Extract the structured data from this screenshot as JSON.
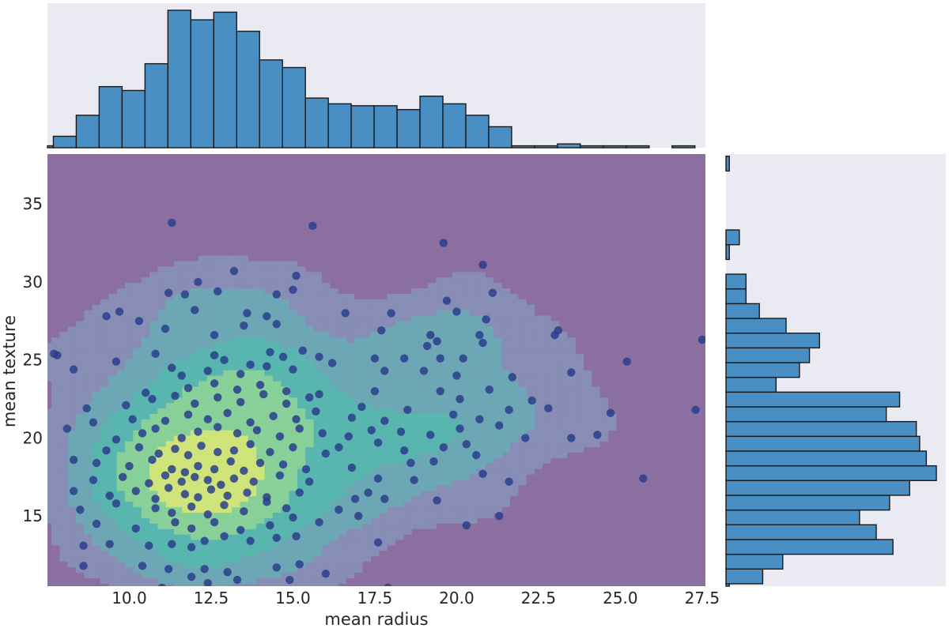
{
  "chart_data": {
    "type": "scatter",
    "title": "",
    "xlabel": "mean radius",
    "ylabel": "mean texture",
    "xlim": [
      7.5,
      27.6
    ],
    "ylim": [
      10.5,
      38.2
    ],
    "x_ticks": [
      "10.0",
      "12.5",
      "15.0",
      "17.5",
      "20.0",
      "22.5",
      "25.0",
      "27.5"
    ],
    "x_tick_values": [
      10.0,
      12.5,
      15.0,
      17.5,
      20.0,
      22.5,
      25.0,
      27.5
    ],
    "y_ticks": [
      "15",
      "20",
      "25",
      "30",
      "35"
    ],
    "y_tick_values": [
      15,
      20,
      25,
      30,
      35
    ],
    "grid": false,
    "background_color": "#8a6fa0",
    "marginal_background": "#eaeaf2",
    "bar_color": "#4a8fc3",
    "point_color": "#2a3e8c",
    "kde_colors": [
      "#8a6fa0",
      "#8790b8",
      "#6aa9b4",
      "#56b7ae",
      "#8dd397",
      "#d6e678"
    ],
    "x_hist": {
      "bin_start": 6.98,
      "bin_width": 0.7,
      "counts": [
        1,
        6,
        17,
        32,
        30,
        44,
        72,
        67,
        71,
        61,
        46,
        42,
        26,
        23,
        22,
        22,
        20,
        27,
        23,
        17,
        11,
        1,
        1,
        2,
        1,
        1,
        1,
        0,
        1,
        0,
        0
      ]
    },
    "y_hist": {
      "bin_start": 9.71,
      "bin_width": 0.945,
      "counts": [
        1,
        11,
        17,
        50,
        45,
        40,
        49,
        55,
        63,
        60,
        58,
        57,
        48,
        52,
        15,
        22,
        25,
        28,
        18,
        10,
        6,
        6,
        0,
        1,
        4,
        0,
        0,
        0,
        0,
        1
      ]
    },
    "points": [
      [
        11.0,
        10.4
      ],
      [
        11.9,
        11.1
      ],
      [
        12.4,
        10.7
      ],
      [
        13.3,
        10.9
      ],
      [
        14.9,
        10.9
      ],
      [
        16.0,
        11.3
      ],
      [
        17.9,
        10.4
      ],
      [
        8.6,
        11.8
      ],
      [
        10.4,
        11.8
      ],
      [
        11.2,
        11.6
      ],
      [
        12.3,
        11.6
      ],
      [
        13.0,
        11.4
      ],
      [
        14.5,
        11.7
      ],
      [
        15.2,
        11.9
      ],
      [
        17.6,
        13.3
      ],
      [
        8.6,
        13.1
      ],
      [
        9.4,
        13.2
      ],
      [
        10.6,
        13.1
      ],
      [
        11.3,
        13.2
      ],
      [
        11.9,
        13.0
      ],
      [
        12.3,
        13.4
      ],
      [
        12.9,
        13.7
      ],
      [
        13.7,
        13.4
      ],
      [
        14.5,
        13.6
      ],
      [
        15.1,
        13.7
      ],
      [
        9.0,
        14.5
      ],
      [
        10.2,
        14.2
      ],
      [
        11.4,
        14.6
      ],
      [
        11.9,
        14.2
      ],
      [
        12.6,
        14.6
      ],
      [
        13.4,
        14.1
      ],
      [
        14.3,
        14.4
      ],
      [
        15.0,
        14.9
      ],
      [
        15.8,
        14.6
      ],
      [
        20.3,
        14.4
      ],
      [
        8.5,
        15.4
      ],
      [
        9.6,
        15.8
      ],
      [
        10.8,
        15.5
      ],
      [
        11.3,
        15.2
      ],
      [
        11.9,
        15.6
      ],
      [
        12.4,
        15.1
      ],
      [
        12.9,
        15.7
      ],
      [
        13.5,
        15.3
      ],
      [
        14.2,
        15.9
      ],
      [
        14.8,
        15.5
      ],
      [
        16.4,
        15.4
      ],
      [
        17.0,
        15.0
      ],
      [
        21.3,
        15.0
      ],
      [
        8.3,
        16.6
      ],
      [
        9.4,
        16.3
      ],
      [
        10.2,
        16.6
      ],
      [
        10.8,
        16.1
      ],
      [
        11.2,
        16.8
      ],
      [
        11.7,
        16.4
      ],
      [
        12.1,
        16.2
      ],
      [
        12.5,
        16.7
      ],
      [
        13.0,
        16.3
      ],
      [
        13.6,
        16.5
      ],
      [
        14.2,
        16.2
      ],
      [
        15.2,
        16.5
      ],
      [
        16.9,
        16.1
      ],
      [
        17.3,
        16.5
      ],
      [
        17.8,
        16.1
      ],
      [
        19.4,
        16.0
      ],
      [
        8.9,
        17.3
      ],
      [
        9.8,
        17.5
      ],
      [
        10.6,
        17.1
      ],
      [
        11.1,
        17.6
      ],
      [
        11.6,
        17.2
      ],
      [
        12.0,
        17.5
      ],
      [
        12.4,
        17.3
      ],
      [
        12.8,
        17.0
      ],
      [
        13.2,
        17.4
      ],
      [
        13.8,
        17.2
      ],
      [
        14.6,
        17.6
      ],
      [
        15.5,
        17.2
      ],
      [
        17.6,
        17.4
      ],
      [
        18.7,
        17.3
      ],
      [
        20.8,
        17.7
      ],
      [
        21.6,
        17.2
      ],
      [
        25.7,
        17.4
      ],
      [
        9.0,
        18.4
      ],
      [
        10.0,
        18.2
      ],
      [
        10.7,
        18.6
      ],
      [
        11.3,
        18.0
      ],
      [
        11.7,
        17.8
      ],
      [
        12.1,
        18.2
      ],
      [
        12.6,
        18.0
      ],
      [
        13.1,
        18.5
      ],
      [
        13.5,
        17.9
      ],
      [
        14.0,
        18.4
      ],
      [
        14.7,
        18.3
      ],
      [
        15.4,
        18.0
      ],
      [
        16.8,
        18.1
      ],
      [
        18.6,
        18.4
      ],
      [
        19.3,
        18.5
      ],
      [
        20.6,
        18.9
      ],
      [
        8.3,
        18.6
      ],
      [
        9.3,
        19.2
      ],
      [
        10.3,
        19.4
      ],
      [
        10.9,
        19.0
      ],
      [
        11.4,
        19.3
      ],
      [
        11.8,
        18.9
      ],
      [
        12.2,
        19.5
      ],
      [
        12.7,
        19.1
      ],
      [
        13.2,
        19.2
      ],
      [
        13.7,
        19.6
      ],
      [
        14.3,
        19.1
      ],
      [
        15.0,
        19.4
      ],
      [
        16.0,
        19.0
      ],
      [
        16.4,
        19.4
      ],
      [
        17.6,
        19.7
      ],
      [
        18.4,
        19.2
      ],
      [
        19.6,
        19.4
      ],
      [
        20.3,
        19.6
      ],
      [
        9.6,
        19.9
      ],
      [
        10.4,
        20.3
      ],
      [
        10.8,
        20.6
      ],
      [
        11.6,
        20.0
      ],
      [
        12.1,
        20.4
      ],
      [
        12.7,
        20.7
      ],
      [
        13.3,
        20.3
      ],
      [
        13.9,
        20.5
      ],
      [
        14.6,
        20.1
      ],
      [
        15.2,
        20.6
      ],
      [
        15.9,
        20.3
      ],
      [
        16.7,
        20.1
      ],
      [
        17.4,
        20.5
      ],
      [
        18.3,
        20.4
      ],
      [
        19.2,
        20.2
      ],
      [
        20.1,
        20.6
      ],
      [
        21.3,
        20.8
      ],
      [
        22.1,
        20.0
      ],
      [
        23.5,
        20.0
      ],
      [
        24.3,
        20.2
      ],
      [
        8.1,
        20.6
      ],
      [
        8.9,
        21.0
      ],
      [
        10.1,
        21.2
      ],
      [
        11.1,
        21.1
      ],
      [
        11.8,
        21.5
      ],
      [
        12.4,
        21.2
      ],
      [
        13.0,
        21.6
      ],
      [
        13.7,
        21.0
      ],
      [
        14.4,
        21.4
      ],
      [
        15.1,
        21.2
      ],
      [
        15.7,
        21.7
      ],
      [
        16.8,
        21.3
      ],
      [
        17.8,
        21.1
      ],
      [
        18.5,
        21.8
      ],
      [
        19.9,
        21.5
      ],
      [
        20.7,
        21.2
      ],
      [
        21.6,
        21.8
      ],
      [
        22.8,
        21.9
      ],
      [
        24.7,
        21.6
      ],
      [
        27.3,
        21.8
      ],
      [
        8.7,
        21.9
      ],
      [
        9.9,
        22.1
      ],
      [
        10.7,
        22.5
      ],
      [
        11.4,
        22.7
      ],
      [
        12.0,
        22.2
      ],
      [
        12.7,
        22.6
      ],
      [
        13.4,
        22.3
      ],
      [
        14.1,
        22.8
      ],
      [
        14.8,
        22.2
      ],
      [
        15.5,
        22.6
      ],
      [
        17.1,
        22.0
      ],
      [
        20.1,
        22.5
      ],
      [
        22.3,
        22.4
      ],
      [
        10.5,
        22.9
      ],
      [
        11.8,
        23.2
      ],
      [
        12.6,
        23.5
      ],
      [
        13.3,
        23.1
      ],
      [
        14.0,
        23.4
      ],
      [
        14.8,
        23.0
      ],
      [
        15.8,
        22.8
      ],
      [
        17.5,
        23.0
      ],
      [
        19.5,
        23.0
      ],
      [
        21.0,
        23.1
      ],
      [
        11.6,
        24.0
      ],
      [
        12.4,
        24.3
      ],
      [
        13.4,
        24.1
      ],
      [
        14.2,
        24.6
      ],
      [
        15.0,
        24.4
      ],
      [
        16.2,
        24.8
      ],
      [
        17.8,
        24.3
      ],
      [
        19.0,
        24.3
      ],
      [
        20.0,
        24.0
      ],
      [
        21.7,
        23.9
      ],
      [
        23.5,
        24.2
      ],
      [
        9.6,
        24.9
      ],
      [
        11.3,
        24.5
      ],
      [
        12.9,
        25.0
      ],
      [
        13.7,
        24.7
      ],
      [
        14.7,
        25.2
      ],
      [
        15.8,
        25.2
      ],
      [
        17.5,
        25.1
      ],
      [
        18.4,
        25.1
      ],
      [
        19.5,
        25.1
      ],
      [
        20.2,
        25.1
      ],
      [
        25.2,
        24.9
      ],
      [
        7.7,
        25.4
      ],
      [
        8.3,
        24.4
      ],
      [
        10.8,
        25.4
      ],
      [
        12.6,
        25.3
      ],
      [
        14.3,
        25.5
      ],
      [
        15.3,
        25.6
      ],
      [
        19.1,
        25.9
      ],
      [
        19.4,
        26.2
      ],
      [
        20.8,
        26.1
      ],
      [
        23.0,
        26.6
      ],
      [
        7.8,
        25.3
      ],
      [
        11.1,
        27.0
      ],
      [
        12.6,
        26.6
      ],
      [
        13.5,
        27.2
      ],
      [
        14.5,
        27.3
      ],
      [
        17.7,
        26.9
      ],
      [
        19.2,
        26.6
      ],
      [
        20.7,
        26.6
      ],
      [
        27.5,
        26.3
      ],
      [
        9.3,
        27.8
      ],
      [
        9.7,
        28.1
      ],
      [
        10.3,
        27.5
      ],
      [
        12.0,
        28.2
      ],
      [
        13.6,
        28.0
      ],
      [
        14.2,
        27.8
      ],
      [
        16.6,
        28.0
      ],
      [
        18.0,
        28.0
      ],
      [
        20.0,
        28.1
      ],
      [
        20.9,
        27.6
      ],
      [
        23.1,
        26.9
      ],
      [
        11.2,
        29.3
      ],
      [
        11.7,
        29.2
      ],
      [
        12.7,
        29.4
      ],
      [
        14.5,
        29.2
      ],
      [
        15.0,
        29.5
      ],
      [
        19.7,
        28.8
      ],
      [
        21.1,
        29.3
      ],
      [
        12.1,
        30.0
      ],
      [
        13.2,
        30.7
      ],
      [
        15.1,
        30.4
      ],
      [
        20.8,
        31.1
      ],
      [
        11.3,
        33.8
      ],
      [
        15.6,
        33.6
      ],
      [
        19.6,
        32.5
      ]
    ]
  }
}
